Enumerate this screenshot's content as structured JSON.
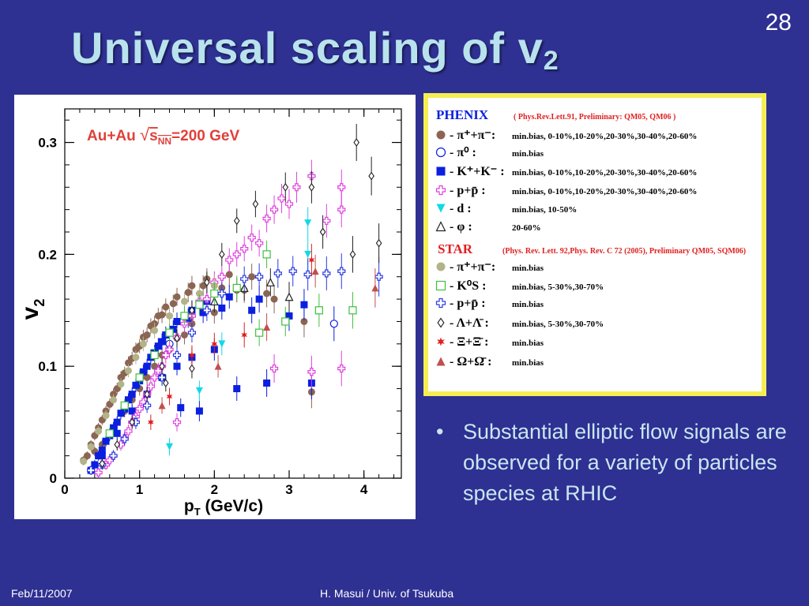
{
  "slide": {
    "number": "28",
    "title_main": "Universal scaling of v",
    "title_sub": "2",
    "bullet": "Substantial elliptic flow signals are observed for a variety of particles species at RHIC",
    "footer_left": "Feb/11/2007",
    "footer_center": "H. Masui / Univ. of Tsukuba"
  },
  "chart_data": {
    "type": "scatter",
    "annotation": {
      "pre": "Au+Au",
      "sqrt_s": "s",
      "sqrt_sub": "NN",
      "post": "=200 GeV"
    },
    "ylabel": {
      "main": "v",
      "sub": "2"
    },
    "xlabel": {
      "main": "p",
      "sub": "T",
      "rest": "(GeV/c)"
    },
    "xlim": [
      0,
      4.5
    ],
    "ylim": [
      0,
      0.33
    ],
    "xticks": [
      {
        "v": 0,
        "label": "0"
      },
      {
        "v": 1,
        "label": "1"
      },
      {
        "v": 2,
        "label": "2"
      },
      {
        "v": 3,
        "label": "3"
      },
      {
        "v": 4,
        "label": "4"
      }
    ],
    "yticks": [
      {
        "v": 0,
        "label": "0"
      },
      {
        "v": 0.1,
        "label": "0.1"
      },
      {
        "v": 0.2,
        "label": "0.2"
      },
      {
        "v": 0.3,
        "label": "0.3"
      }
    ],
    "series": [
      {
        "key": "phenix_pi",
        "color": "#8b6553",
        "marker": "circle-filled",
        "points": [
          [
            0.25,
            0.016
          ],
          [
            0.35,
            0.03
          ],
          [
            0.45,
            0.045
          ],
          [
            0.55,
            0.06
          ],
          [
            0.65,
            0.075
          ],
          [
            0.75,
            0.09
          ],
          [
            0.85,
            0.103
          ],
          [
            0.95,
            0.115
          ],
          [
            1.05,
            0.126
          ],
          [
            1.15,
            0.136
          ],
          [
            1.25,
            0.145
          ],
          [
            1.35,
            0.153
          ],
          [
            1.5,
            0.162
          ],
          [
            1.7,
            0.172
          ],
          [
            1.9,
            0.178
          ],
          [
            2.2,
            0.182
          ],
          [
            2.5,
            0.18
          ],
          [
            0.3,
            0.02
          ],
          [
            0.4,
            0.038
          ],
          [
            0.5,
            0.052
          ],
          [
            0.6,
            0.066
          ],
          [
            0.7,
            0.08
          ],
          [
            0.8,
            0.094
          ],
          [
            0.9,
            0.107
          ],
          [
            1.0,
            0.118
          ],
          [
            1.1,
            0.128
          ],
          [
            1.2,
            0.138
          ],
          [
            1.3,
            0.146
          ],
          [
            1.45,
            0.156
          ],
          [
            1.65,
            0.166
          ],
          [
            1.85,
            0.172
          ],
          [
            2.1,
            0.17
          ],
          [
            2.4,
            0.168
          ],
          [
            2.8,
            0.16
          ],
          [
            3.2,
            0.14
          ],
          [
            0.5,
            0.03
          ],
          [
            0.7,
            0.05
          ],
          [
            0.9,
            0.07
          ],
          [
            1.1,
            0.09
          ],
          [
            1.3,
            0.11
          ],
          [
            1.5,
            0.125
          ],
          [
            1.7,
            0.138
          ],
          [
            2.0,
            0.148
          ],
          [
            0.4,
            0.024
          ],
          [
            0.6,
            0.04
          ],
          [
            0.8,
            0.06
          ],
          [
            1.0,
            0.08
          ],
          [
            1.2,
            0.1
          ],
          [
            1.4,
            0.115
          ],
          [
            1.6,
            0.128
          ],
          [
            2.3,
            0.168
          ],
          [
            2.7,
            0.165
          ],
          [
            3.3,
            0.077
          ]
        ]
      },
      {
        "key": "phenix_pi0",
        "color": "#0a1fe0",
        "marker": "circle-open",
        "points": [
          [
            1.2,
            0.11
          ],
          [
            1.4,
            0.12
          ],
          [
            3.6,
            0.138
          ]
        ]
      },
      {
        "key": "phenix_k",
        "color": "#0a1fe0",
        "marker": "square-filled",
        "points": [
          [
            0.35,
            0.007
          ],
          [
            0.45,
            0.02
          ],
          [
            0.55,
            0.033
          ],
          [
            0.65,
            0.045
          ],
          [
            0.75,
            0.058
          ],
          [
            0.85,
            0.07
          ],
          [
            0.95,
            0.083
          ],
          [
            1.05,
            0.095
          ],
          [
            1.15,
            0.108
          ],
          [
            1.25,
            0.118
          ],
          [
            1.35,
            0.128
          ],
          [
            1.5,
            0.14
          ],
          [
            1.7,
            0.15
          ],
          [
            1.9,
            0.158
          ],
          [
            2.2,
            0.162
          ],
          [
            2.6,
            0.16
          ],
          [
            3.2,
            0.155
          ],
          [
            0.4,
            0.012
          ],
          [
            0.5,
            0.025
          ],
          [
            0.6,
            0.038
          ],
          [
            0.7,
            0.05
          ],
          [
            0.8,
            0.062
          ],
          [
            0.9,
            0.075
          ],
          [
            1.0,
            0.087
          ],
          [
            1.1,
            0.1
          ],
          [
            1.2,
            0.112
          ],
          [
            1.3,
            0.122
          ],
          [
            1.45,
            0.133
          ],
          [
            1.65,
            0.143
          ],
          [
            1.85,
            0.148
          ],
          [
            2.1,
            0.152
          ],
          [
            2.5,
            0.15
          ],
          [
            3.0,
            0.145
          ],
          [
            0.5,
            0.02
          ],
          [
            0.7,
            0.04
          ],
          [
            0.9,
            0.06
          ],
          [
            1.1,
            0.075
          ],
          [
            1.3,
            0.09
          ],
          [
            1.5,
            0.1
          ],
          [
            1.7,
            0.108
          ],
          [
            2.0,
            0.115
          ],
          [
            2.3,
            0.08
          ],
          [
            2.7,
            0.085
          ],
          [
            3.3,
            0.085
          ],
          [
            1.8,
            0.06
          ],
          [
            1.55,
            0.063
          ]
        ]
      },
      {
        "key": "phenix_p",
        "color": "#e040e0",
        "marker": "cross-open",
        "points": [
          [
            0.45,
            0.005
          ],
          [
            0.55,
            0.012
          ],
          [
            0.65,
            0.02
          ],
          [
            0.75,
            0.03
          ],
          [
            0.85,
            0.042
          ],
          [
            0.95,
            0.055
          ],
          [
            1.05,
            0.068
          ],
          [
            1.15,
            0.082
          ],
          [
            1.25,
            0.096
          ],
          [
            1.35,
            0.11
          ],
          [
            1.5,
            0.126
          ],
          [
            1.7,
            0.145
          ],
          [
            1.9,
            0.16
          ],
          [
            2.1,
            0.18
          ],
          [
            2.3,
            0.2
          ],
          [
            2.5,
            0.215
          ],
          [
            2.7,
            0.232
          ],
          [
            2.9,
            0.25
          ],
          [
            3.1,
            0.26
          ],
          [
            3.3,
            0.27
          ],
          [
            3.7,
            0.26
          ],
          [
            0.6,
            0.016
          ],
          [
            0.8,
            0.036
          ],
          [
            1.0,
            0.062
          ],
          [
            1.2,
            0.09
          ],
          [
            1.4,
            0.115
          ],
          [
            1.6,
            0.138
          ],
          [
            1.8,
            0.158
          ],
          [
            2.0,
            0.175
          ],
          [
            2.2,
            0.195
          ],
          [
            2.4,
            0.205
          ],
          [
            2.6,
            0.21
          ],
          [
            2.8,
            0.24
          ],
          [
            3.0,
            0.245
          ],
          [
            3.5,
            0.23
          ],
          [
            3.7,
            0.098
          ],
          [
            3.3,
            0.095
          ],
          [
            2.8,
            0.098
          ],
          [
            1.5,
            0.05
          ],
          [
            0.9,
            0.05
          ],
          [
            1.1,
            0.075
          ],
          [
            1.3,
            0.1
          ],
          [
            3.7,
            0.24
          ]
        ]
      },
      {
        "key": "phenix_d",
        "color": "#12d8e8",
        "marker": "triangle-down",
        "points": [
          [
            1.4,
            0.028
          ],
          [
            1.8,
            0.078
          ],
          [
            2.1,
            0.12
          ],
          [
            3.25,
            0.228
          ],
          [
            3.25,
            0.2
          ]
        ]
      },
      {
        "key": "phenix_phi",
        "color": "#222222",
        "marker": "triangle-up-open",
        "points": [
          [
            2.0,
            0.158
          ],
          [
            2.4,
            0.17
          ],
          [
            2.75,
            0.175
          ],
          [
            3.0,
            0.162
          ]
        ]
      },
      {
        "key": "star_pi",
        "color": "#b3b38a",
        "marker": "circle-filled",
        "points": [
          [
            0.25,
            0.015
          ],
          [
            0.35,
            0.028
          ],
          [
            0.45,
            0.042
          ],
          [
            0.55,
            0.056
          ],
          [
            0.65,
            0.07
          ],
          [
            0.75,
            0.084
          ],
          [
            0.85,
            0.096
          ],
          [
            0.95,
            0.108
          ],
          [
            1.05,
            0.12
          ],
          [
            1.2,
            0.132
          ],
          [
            1.4,
            0.145
          ],
          [
            1.6,
            0.158
          ],
          [
            1.8,
            0.165
          ],
          [
            2.0,
            0.172
          ]
        ]
      },
      {
        "key": "star_ks",
        "color": "#3fc03f",
        "marker": "square-open",
        "points": [
          [
            0.6,
            0.04
          ],
          [
            0.8,
            0.065
          ],
          [
            1.0,
            0.09
          ],
          [
            1.2,
            0.11
          ],
          [
            1.4,
            0.13
          ],
          [
            1.6,
            0.145
          ],
          [
            1.8,
            0.155
          ],
          [
            2.0,
            0.165
          ],
          [
            2.3,
            0.17
          ],
          [
            2.6,
            0.13
          ],
          [
            2.7,
            0.2
          ],
          [
            2.95,
            0.14
          ],
          [
            3.4,
            0.15
          ],
          [
            3.85,
            0.15
          ]
        ]
      },
      {
        "key": "star_p",
        "color": "#2a3be0",
        "marker": "cross-open",
        "points": [
          [
            0.35,
            0.007
          ],
          [
            0.5,
            0.012
          ],
          [
            0.65,
            0.02
          ],
          [
            0.8,
            0.035
          ],
          [
            0.95,
            0.05
          ],
          [
            1.1,
            0.065
          ],
          [
            1.3,
            0.09
          ],
          [
            1.5,
            0.11
          ],
          [
            1.7,
            0.13
          ],
          [
            1.9,
            0.15
          ],
          [
            2.1,
            0.165
          ],
          [
            2.4,
            0.178
          ],
          [
            2.6,
            0.18
          ],
          [
            2.85,
            0.183
          ],
          [
            3.05,
            0.185
          ],
          [
            3.25,
            0.182
          ],
          [
            3.5,
            0.183
          ],
          [
            3.7,
            0.185
          ],
          [
            4.2,
            0.18
          ]
        ]
      },
      {
        "key": "star_lambda",
        "color": "#222222",
        "marker": "diamond-open",
        "points": [
          [
            0.5,
            0.013
          ],
          [
            0.7,
            0.03
          ],
          [
            0.9,
            0.05
          ],
          [
            1.1,
            0.075
          ],
          [
            1.3,
            0.1
          ],
          [
            1.5,
            0.125
          ],
          [
            1.7,
            0.15
          ],
          [
            1.9,
            0.175
          ],
          [
            2.1,
            0.2
          ],
          [
            2.3,
            0.23
          ],
          [
            2.55,
            0.245
          ],
          [
            2.95,
            0.26
          ],
          [
            3.3,
            0.26
          ],
          [
            3.9,
            0.3
          ],
          [
            4.1,
            0.27
          ],
          [
            4.2,
            0.21
          ],
          [
            3.85,
            0.2
          ],
          [
            3.45,
            0.22
          ],
          [
            1.7,
            0.098
          ],
          [
            1.35,
            0.085
          ]
        ]
      },
      {
        "key": "star_xi",
        "color": "#e02020",
        "marker": "star",
        "points": [
          [
            1.15,
            0.05
          ],
          [
            1.4,
            0.073
          ],
          [
            1.7,
            0.11
          ],
          [
            2.0,
            0.12
          ],
          [
            2.4,
            0.128
          ],
          [
            3.3,
            0.195
          ]
        ]
      },
      {
        "key": "star_omega",
        "color": "#c0504d",
        "marker": "triangle-up",
        "points": [
          [
            1.3,
            0.065
          ],
          [
            2.05,
            0.1
          ],
          [
            2.7,
            0.135
          ],
          [
            3.35,
            0.185
          ],
          [
            4.15,
            0.17
          ]
        ]
      }
    ]
  },
  "legend": {
    "phenix_header": "PHENIX",
    "phenix_ref": "( Phys.Rev.Lett.91, Preliminary: QM05, QM06 )",
    "star_header": "STAR",
    "star_ref": "(Phys. Rev. Lett. 92,Phys. Rev. C 72 (2005), Preliminary QM05, SQM06)",
    "rows": [
      {
        "series": "phenix_pi",
        "label": "- π⁺+π⁻:",
        "cond": "min.bias, 0-10%,10-20%,20-30%,30-40%,20-60%"
      },
      {
        "series": "phenix_pi0",
        "label": "- π⁰ :",
        "cond": "min.bias"
      },
      {
        "series": "phenix_k",
        "label": "- K⁺+K⁻ :",
        "cond": "min.bias, 0-10%,10-20%,20-30%,30-40%,20-60%"
      },
      {
        "series": "phenix_p",
        "label": "- p+p̄ :",
        "cond": "min.bias, 0-10%,10-20%,20-30%,30-40%,20-60%"
      },
      {
        "series": "phenix_d",
        "label": "- d :",
        "cond": "min.bias, 10-50%"
      },
      {
        "series": "phenix_phi",
        "label": "- φ :",
        "cond": "20-60%"
      },
      {
        "series": "star_pi",
        "label": "- π⁺+π⁻:",
        "cond": "min.bias"
      },
      {
        "series": "star_ks",
        "label": "- K⁰S :",
        "cond": "min.bias, 5-30%,30-70%"
      },
      {
        "series": "star_p",
        "label": "- p+p̄ :",
        "cond": "min.bias"
      },
      {
        "series": "star_lambda",
        "label": "- Λ+Λ̄ :",
        "cond": "min.bias, 5-30%,30-70%"
      },
      {
        "series": "star_xi",
        "label": "- Ξ+Ξ̄ :",
        "cond": "min.bias"
      },
      {
        "series": "star_omega",
        "label": "- Ω+Ω̄ :",
        "cond": "min.bias"
      }
    ]
  }
}
